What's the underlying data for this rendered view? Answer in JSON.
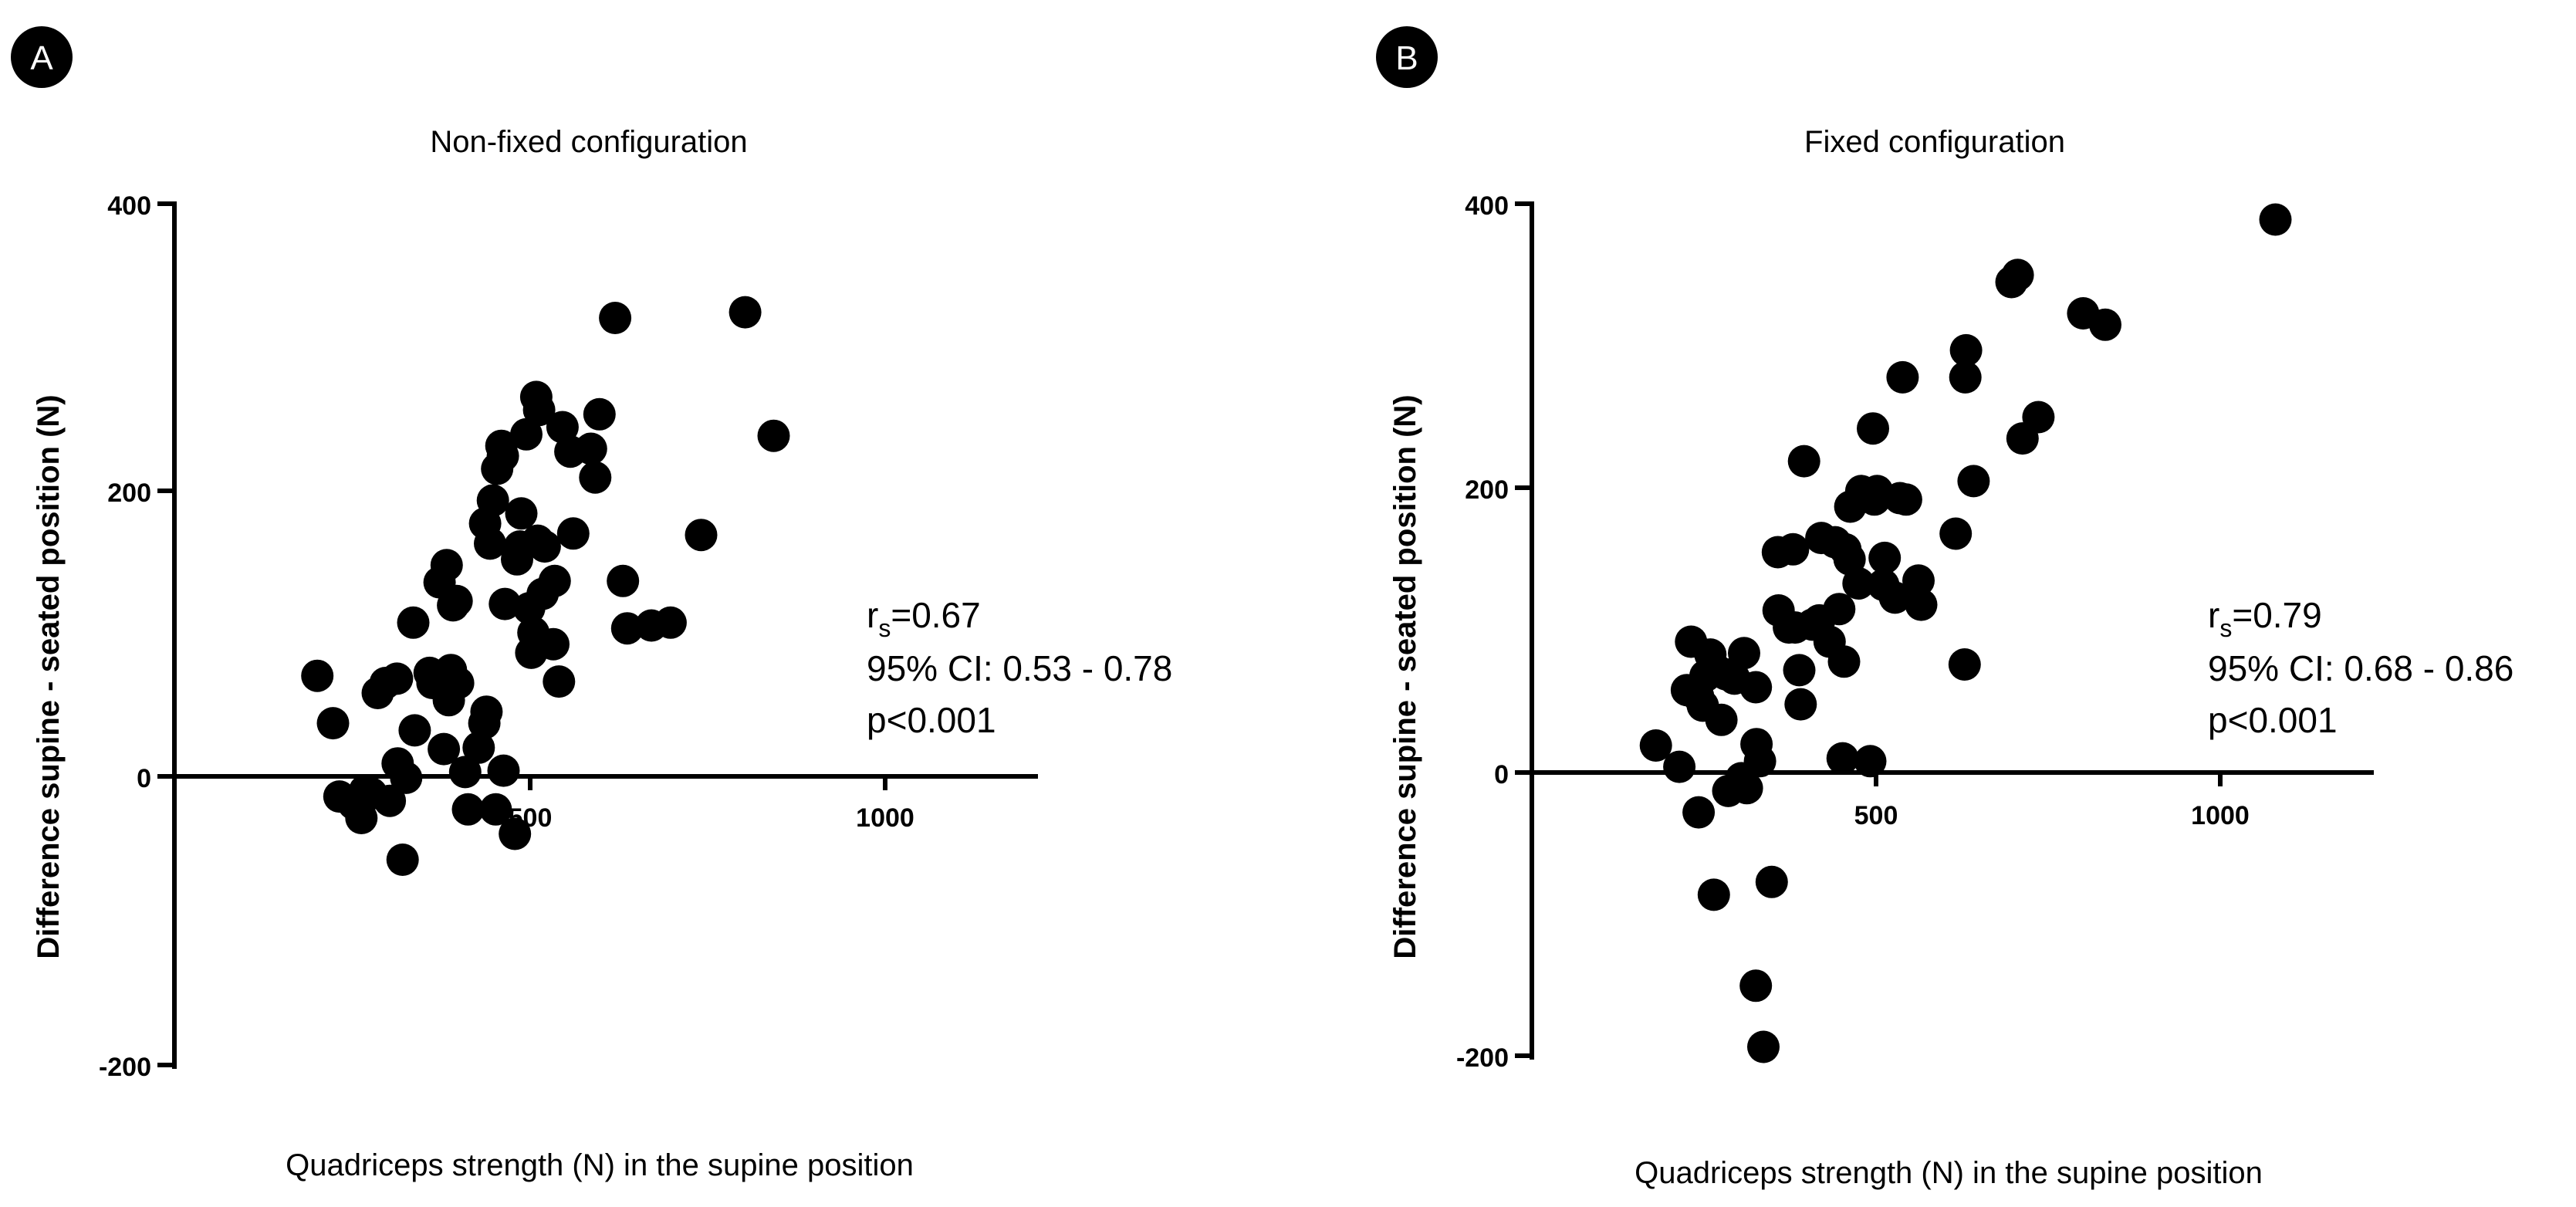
{
  "figure": {
    "panels": [
      "A",
      "B"
    ]
  },
  "chart_data": [
    {
      "panel_label": "A",
      "type": "scatter",
      "title": "Non-fixed configuration",
      "xlabel": "Quadriceps strength (N) in the supine position",
      "ylabel": "Difference supine - seated position (N)",
      "xlim": [
        0,
        1220
      ],
      "ylim": [
        -200,
        400
      ],
      "xticks": [
        {
          "value": 500,
          "label": "500"
        },
        {
          "value": 1000,
          "label": "1000"
        }
      ],
      "yticks": [
        {
          "value": 400,
          "label": "400"
        },
        {
          "value": 200,
          "label": "200"
        },
        {
          "value": 0,
          "label": "0"
        },
        {
          "value": -200,
          "label": "-200"
        }
      ],
      "stats": {
        "r_prefix": "r",
        "r_subscript": "s",
        "r_value": "=0.67",
        "ci": "95% CI: 0.53 - 0.78",
        "p": "p<0.001"
      },
      "points": [
        [
          200,
          70
        ],
        [
          222,
          37
        ],
        [
          231,
          -14
        ],
        [
          251,
          -19
        ],
        [
          262,
          -29
        ],
        [
          267,
          -10
        ],
        [
          276,
          -12
        ],
        [
          285,
          58
        ],
        [
          296,
          65
        ],
        [
          302,
          -17
        ],
        [
          312,
          68
        ],
        [
          313,
          9
        ],
        [
          320,
          -58
        ],
        [
          325,
          -1
        ],
        [
          335,
          107
        ],
        [
          337,
          32
        ],
        [
          358,
          72
        ],
        [
          362,
          65
        ],
        [
          372,
          135
        ],
        [
          378,
          19
        ],
        [
          382,
          147
        ],
        [
          385,
          53
        ],
        [
          388,
          74
        ],
        [
          391,
          119
        ],
        [
          396,
          122
        ],
        [
          398,
          65
        ],
        [
          408,
          3
        ],
        [
          412,
          -23
        ],
        [
          427,
          20
        ],
        [
          435,
          37
        ],
        [
          436,
          176
        ],
        [
          438,
          45
        ],
        [
          443,
          162
        ],
        [
          447,
          192
        ],
        [
          451,
          -23
        ],
        [
          453,
          214
        ],
        [
          459,
          230
        ],
        [
          461,
          223
        ],
        [
          462,
          4
        ],
        [
          464,
          120
        ],
        [
          478,
          -40
        ],
        [
          481,
          151
        ],
        [
          485,
          160
        ],
        [
          487,
          183
        ],
        [
          494,
          238
        ],
        [
          498,
          117
        ],
        [
          501,
          86
        ],
        [
          504,
          100
        ],
        [
          508,
          264
        ],
        [
          510,
          164
        ],
        [
          512,
          255
        ],
        [
          517,
          127
        ],
        [
          520,
          160
        ],
        [
          532,
          92
        ],
        [
          534,
          136
        ],
        [
          540,
          66
        ],
        [
          545,
          243
        ],
        [
          556,
          226
        ],
        [
          560,
          169
        ],
        [
          585,
          228
        ],
        [
          591,
          208
        ],
        [
          597,
          252
        ],
        [
          619,
          319
        ],
        [
          630,
          136
        ],
        [
          636,
          103
        ],
        [
          670,
          105
        ],
        [
          697,
          107
        ],
        [
          740,
          168
        ],
        [
          802,
          323
        ],
        [
          842,
          237
        ]
      ]
    },
    {
      "panel_label": "B",
      "type": "scatter",
      "title": "Fixed configuration",
      "xlabel": "Quadriceps strength (N) in the supine position",
      "ylabel": "Difference supine - seated position (N)",
      "xlim": [
        0,
        1220
      ],
      "ylim": [
        -200,
        400
      ],
      "xticks": [
        {
          "value": 500,
          "label": "500"
        },
        {
          "value": 1000,
          "label": "1000"
        }
      ],
      "yticks": [
        {
          "value": 400,
          "label": "400"
        },
        {
          "value": 200,
          "label": "200"
        },
        {
          "value": 0,
          "label": "0"
        },
        {
          "value": -200,
          "label": "-200"
        }
      ],
      "stats": {
        "r_prefix": "r",
        "r_subscript": "s",
        "r_value": "=0.79",
        "ci": "95% CI: 0.68 - 0.86",
        "p": "p<0.001"
      },
      "points": [
        [
          180,
          19
        ],
        [
          214,
          4
        ],
        [
          225,
          58
        ],
        [
          231,
          92
        ],
        [
          241,
          54
        ],
        [
          242,
          -28
        ],
        [
          248,
          47
        ],
        [
          252,
          68
        ],
        [
          259,
          83
        ],
        [
          264,
          -86
        ],
        [
          268,
          72
        ],
        [
          275,
          37
        ],
        [
          282,
          69
        ],
        [
          285,
          -13
        ],
        [
          294,
          66
        ],
        [
          304,
          -4
        ],
        [
          308,
          84
        ],
        [
          312,
          -11
        ],
        [
          325,
          60
        ],
        [
          325,
          -150
        ],
        [
          326,
          20
        ],
        [
          331,
          8
        ],
        [
          336,
          -193
        ],
        [
          348,
          -77
        ],
        [
          357,
          155
        ],
        [
          358,
          114
        ],
        [
          373,
          102
        ],
        [
          379,
          157
        ],
        [
          382,
          102
        ],
        [
          388,
          72
        ],
        [
          390,
          48
        ],
        [
          395,
          219
        ],
        [
          407,
          104
        ],
        [
          417,
          107
        ],
        [
          420,
          165
        ],
        [
          432,
          92
        ],
        [
          440,
          162
        ],
        [
          446,
          115
        ],
        [
          451,
          10
        ],
        [
          453,
          78
        ],
        [
          455,
          157
        ],
        [
          461,
          150
        ],
        [
          462,
          187
        ],
        [
          474,
          133
        ],
        [
          478,
          198
        ],
        [
          491,
          8
        ],
        [
          495,
          242
        ],
        [
          497,
          192
        ],
        [
          501,
          198
        ],
        [
          510,
          132
        ],
        [
          512,
          151
        ],
        [
          527,
          123
        ],
        [
          534,
          193
        ],
        [
          538,
          278
        ],
        [
          543,
          192
        ],
        [
          561,
          135
        ],
        [
          565,
          118
        ],
        [
          615,
          168
        ],
        [
          628,
          76
        ],
        [
          629,
          278
        ],
        [
          630,
          297
        ],
        [
          641,
          205
        ],
        [
          696,
          345
        ],
        [
          705,
          350
        ],
        [
          712,
          235
        ],
        [
          735,
          250
        ],
        [
          800,
          323
        ],
        [
          832,
          315
        ],
        [
          1079,
          389
        ]
      ]
    }
  ]
}
